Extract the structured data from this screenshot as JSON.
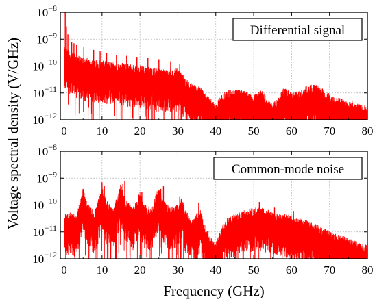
{
  "figure": {
    "ylabel": "Voltage spectral density (V/GHz)",
    "xlabel": "Frequency (GHz)"
  },
  "chart_data": [
    {
      "type": "line",
      "label": "Differential signal",
      "x_ticks": [
        "0",
        "10",
        "20",
        "30",
        "40",
        "50",
        "60",
        "70",
        "80"
      ],
      "y_ticks": [
        {
          "base": "10",
          "exp": "−8"
        },
        {
          "base": "10",
          "exp": "−9"
        },
        {
          "base": "10",
          "exp": "−10"
        },
        {
          "base": "10",
          "exp": "−11"
        },
        {
          "base": "10",
          "exp": "−12"
        }
      ],
      "xlim": [
        -1,
        80
      ],
      "ylim": [
        1e-12,
        1e-08
      ],
      "yscale": "log",
      "grid": true,
      "line_color": "#ff0000",
      "envelope_x": [
        0,
        2,
        5,
        10,
        15,
        20,
        25,
        30,
        33,
        36,
        38,
        39,
        40,
        41,
        42,
        44,
        47,
        49,
        50,
        51,
        52,
        54,
        55,
        56,
        57,
        58,
        60,
        62,
        64,
        66,
        68,
        70,
        72,
        75,
        78,
        80
      ],
      "envelope_y": [
        2e-10,
        1.2e-10,
        8e-11,
        6e-11,
        5e-11,
        4e-11,
        3e-11,
        3e-11,
        1e-11,
        6e-12,
        3e-12,
        2e-12,
        1.5e-12,
        2.5e-12,
        4e-12,
        5e-12,
        5e-12,
        3.5e-12,
        3e-12,
        4.5e-12,
        5e-12,
        2e-12,
        1.6e-12,
        2e-12,
        4e-12,
        6e-12,
        4e-12,
        4.5e-12,
        7e-12,
        8e-12,
        6e-12,
        3.5e-12,
        2.5e-12,
        2e-12,
        1.5e-12,
        1.2e-12
      ],
      "spike_x": [
        0.3,
        0.6,
        1.0,
        2.0,
        2.6,
        3.3,
        5.2,
        7.8,
        9.5,
        11.2,
        13.8,
        16.5,
        19.2,
        22.1,
        25.0,
        28.1,
        30.5
      ],
      "spike_y": [
        1e-08,
        3e-09,
        1.5e-09,
        8e-10,
        7e-10,
        6e-10,
        5e-10,
        4e-10,
        3.5e-10,
        3e-10,
        2.6e-10,
        2.4e-10,
        2.2e-10,
        2e-10,
        1.8e-10,
        1.5e-10,
        1.2e-10
      ]
    },
    {
      "type": "line",
      "label": "Common-mode noise",
      "x_ticks": [
        "0",
        "10",
        "20",
        "30",
        "40",
        "50",
        "60",
        "70",
        "80"
      ],
      "y_ticks": [
        {
          "base": "10",
          "exp": "−8"
        },
        {
          "base": "10",
          "exp": "−9"
        },
        {
          "base": "10",
          "exp": "−10"
        },
        {
          "base": "10",
          "exp": "−11"
        },
        {
          "base": "10",
          "exp": "−12"
        }
      ],
      "xlim": [
        -1,
        80
      ],
      "ylim": [
        1e-12,
        1e-08
      ],
      "yscale": "log",
      "grid": true,
      "line_color": "#ff0000",
      "envelope_x": [
        0,
        2,
        3,
        4,
        5,
        6,
        8,
        9,
        10,
        11,
        13,
        14,
        15,
        16,
        18,
        19,
        20,
        21,
        23,
        24,
        25,
        26,
        28,
        30,
        31,
        32,
        34,
        35,
        36,
        37,
        38,
        39,
        40,
        41,
        42,
        44,
        46,
        48,
        50,
        52,
        54,
        56,
        58,
        60,
        62,
        64,
        66,
        68,
        70,
        72,
        74,
        76,
        78,
        80
      ],
      "envelope_y": [
        2e-11,
        2e-11,
        1.5e-11,
        4e-11,
        1.5e-10,
        5e-11,
        2e-11,
        6e-11,
        2e-10,
        6e-11,
        3e-11,
        8e-11,
        2.5e-10,
        8e-11,
        3e-11,
        5e-11,
        1.2e-10,
        4e-11,
        3e-11,
        8e-11,
        1.8e-10,
        6e-11,
        3e-11,
        4e-11,
        7e-11,
        2.5e-11,
        1e-11,
        2e-11,
        2.5e-11,
        8e-12,
        4e-12,
        2e-12,
        1.5e-12,
        4e-12,
        1e-11,
        1.5e-11,
        2e-11,
        2.5e-11,
        3e-11,
        3e-11,
        2.5e-11,
        2e-11,
        1.8e-11,
        1.5e-11,
        1.2e-11,
        1e-11,
        8e-12,
        6e-12,
        4e-12,
        3e-12,
        2.5e-12,
        2e-12,
        1.5e-12,
        1.2e-12
      ],
      "spike_x": [
        5.0,
        10.0,
        10.6,
        15.5,
        16.0,
        20.5,
        25.5,
        26.2,
        30.5,
        35.5,
        47.0,
        51.5,
        55.5,
        60.5
      ],
      "spike_y": [
        4e-10,
        7e-10,
        5e-10,
        6e-10,
        8e-10,
        3e-10,
        4e-10,
        5e-10,
        2e-10,
        1.2e-10,
        5e-11,
        1.3e-10,
        8e-11,
        6e-11
      ]
    }
  ]
}
